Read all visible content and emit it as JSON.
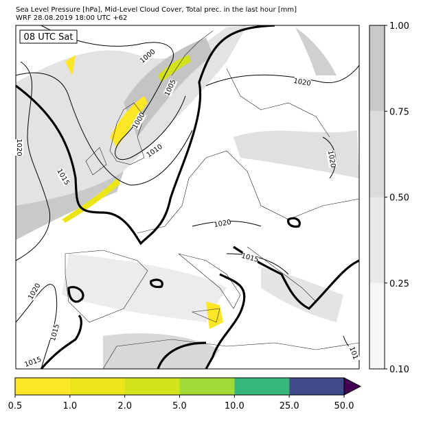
{
  "header": {
    "lines": [
      "Sea Level Pressure [hPa], Mid-Level Cloud Cover, Total prec. in the last hour [mm]",
      "WRF 28.08.2019 18:00 UTC +62"
    ]
  },
  "map": {
    "time_label": "08 UTC Sat",
    "contour_labels": [
      "1000",
      "1005",
      "1000",
      "1010",
      "1015",
      "1020",
      "1020",
      "1020",
      "1020",
      "1015",
      "1020",
      "1015",
      "1015",
      "101"
    ]
  },
  "cloud_colorbar": {
    "ticks": [
      {
        "value": 0.1,
        "label": "0.10"
      },
      {
        "value": 0.25,
        "label": "0.25"
      },
      {
        "value": 0.5,
        "label": "0.50"
      },
      {
        "value": 0.75,
        "label": "0.75"
      },
      {
        "value": 1.0,
        "label": "1.00"
      }
    ],
    "colors": [
      "#f7f7f7",
      "#e9e9e9",
      "#dcdcdc",
      "#c9c9c9"
    ]
  },
  "precip_colorbar": {
    "ticks": [
      0.5,
      {
        "value": 1.0,
        "label": "1.0"
      },
      {
        "value": 2.0,
        "label": "2.0"
      },
      {
        "value": 5.0,
        "label": "5.0"
      },
      {
        "value": 10.0,
        "label": "10.0"
      },
      {
        "value": 25.0,
        "label": "25.0"
      },
      {
        "value": 50.0,
        "label": "50.0"
      }
    ],
    "colors": [
      "#fde725",
      "#ebe51a",
      "#d2e21b",
      "#a2da37",
      "#35b779",
      "#3e4a89"
    ],
    "extend_color": "#440154"
  }
}
